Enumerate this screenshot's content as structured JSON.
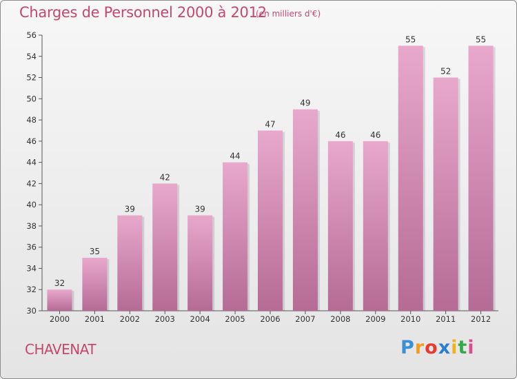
{
  "title": "Charges de Personnel 2000 à 2012",
  "subtitle": "(en milliers d'€)",
  "commune": "CHAVENAT",
  "logo": {
    "letters": [
      "P",
      "r",
      "o",
      "x",
      "i",
      "t",
      "i"
    ],
    "colors": [
      "#3b8fd6",
      "#f39c1f",
      "#e63b2e",
      "#2b7fd0",
      "#f2b21c",
      "#35a84a",
      "#d94c8f"
    ]
  },
  "colors": {
    "bar_top": "#e8a8cc",
    "bar_bottom": "#b56b94",
    "accent": "#c4486e"
  },
  "chart_data": {
    "type": "bar",
    "categories": [
      "2000",
      "2001",
      "2002",
      "2003",
      "2004",
      "2005",
      "2006",
      "2007",
      "2008",
      "2009",
      "2010",
      "2011",
      "2012"
    ],
    "values": [
      32,
      35,
      39,
      42,
      39,
      44,
      47,
      49,
      46,
      46,
      55,
      52,
      55
    ],
    "title": "Charges de Personnel 2000 à 2012",
    "ylim": [
      30,
      56
    ],
    "yticks": [
      30,
      32,
      34,
      36,
      38,
      40,
      42,
      44,
      46,
      48,
      50,
      52,
      54,
      56
    ],
    "grid": false,
    "legend": "none"
  }
}
